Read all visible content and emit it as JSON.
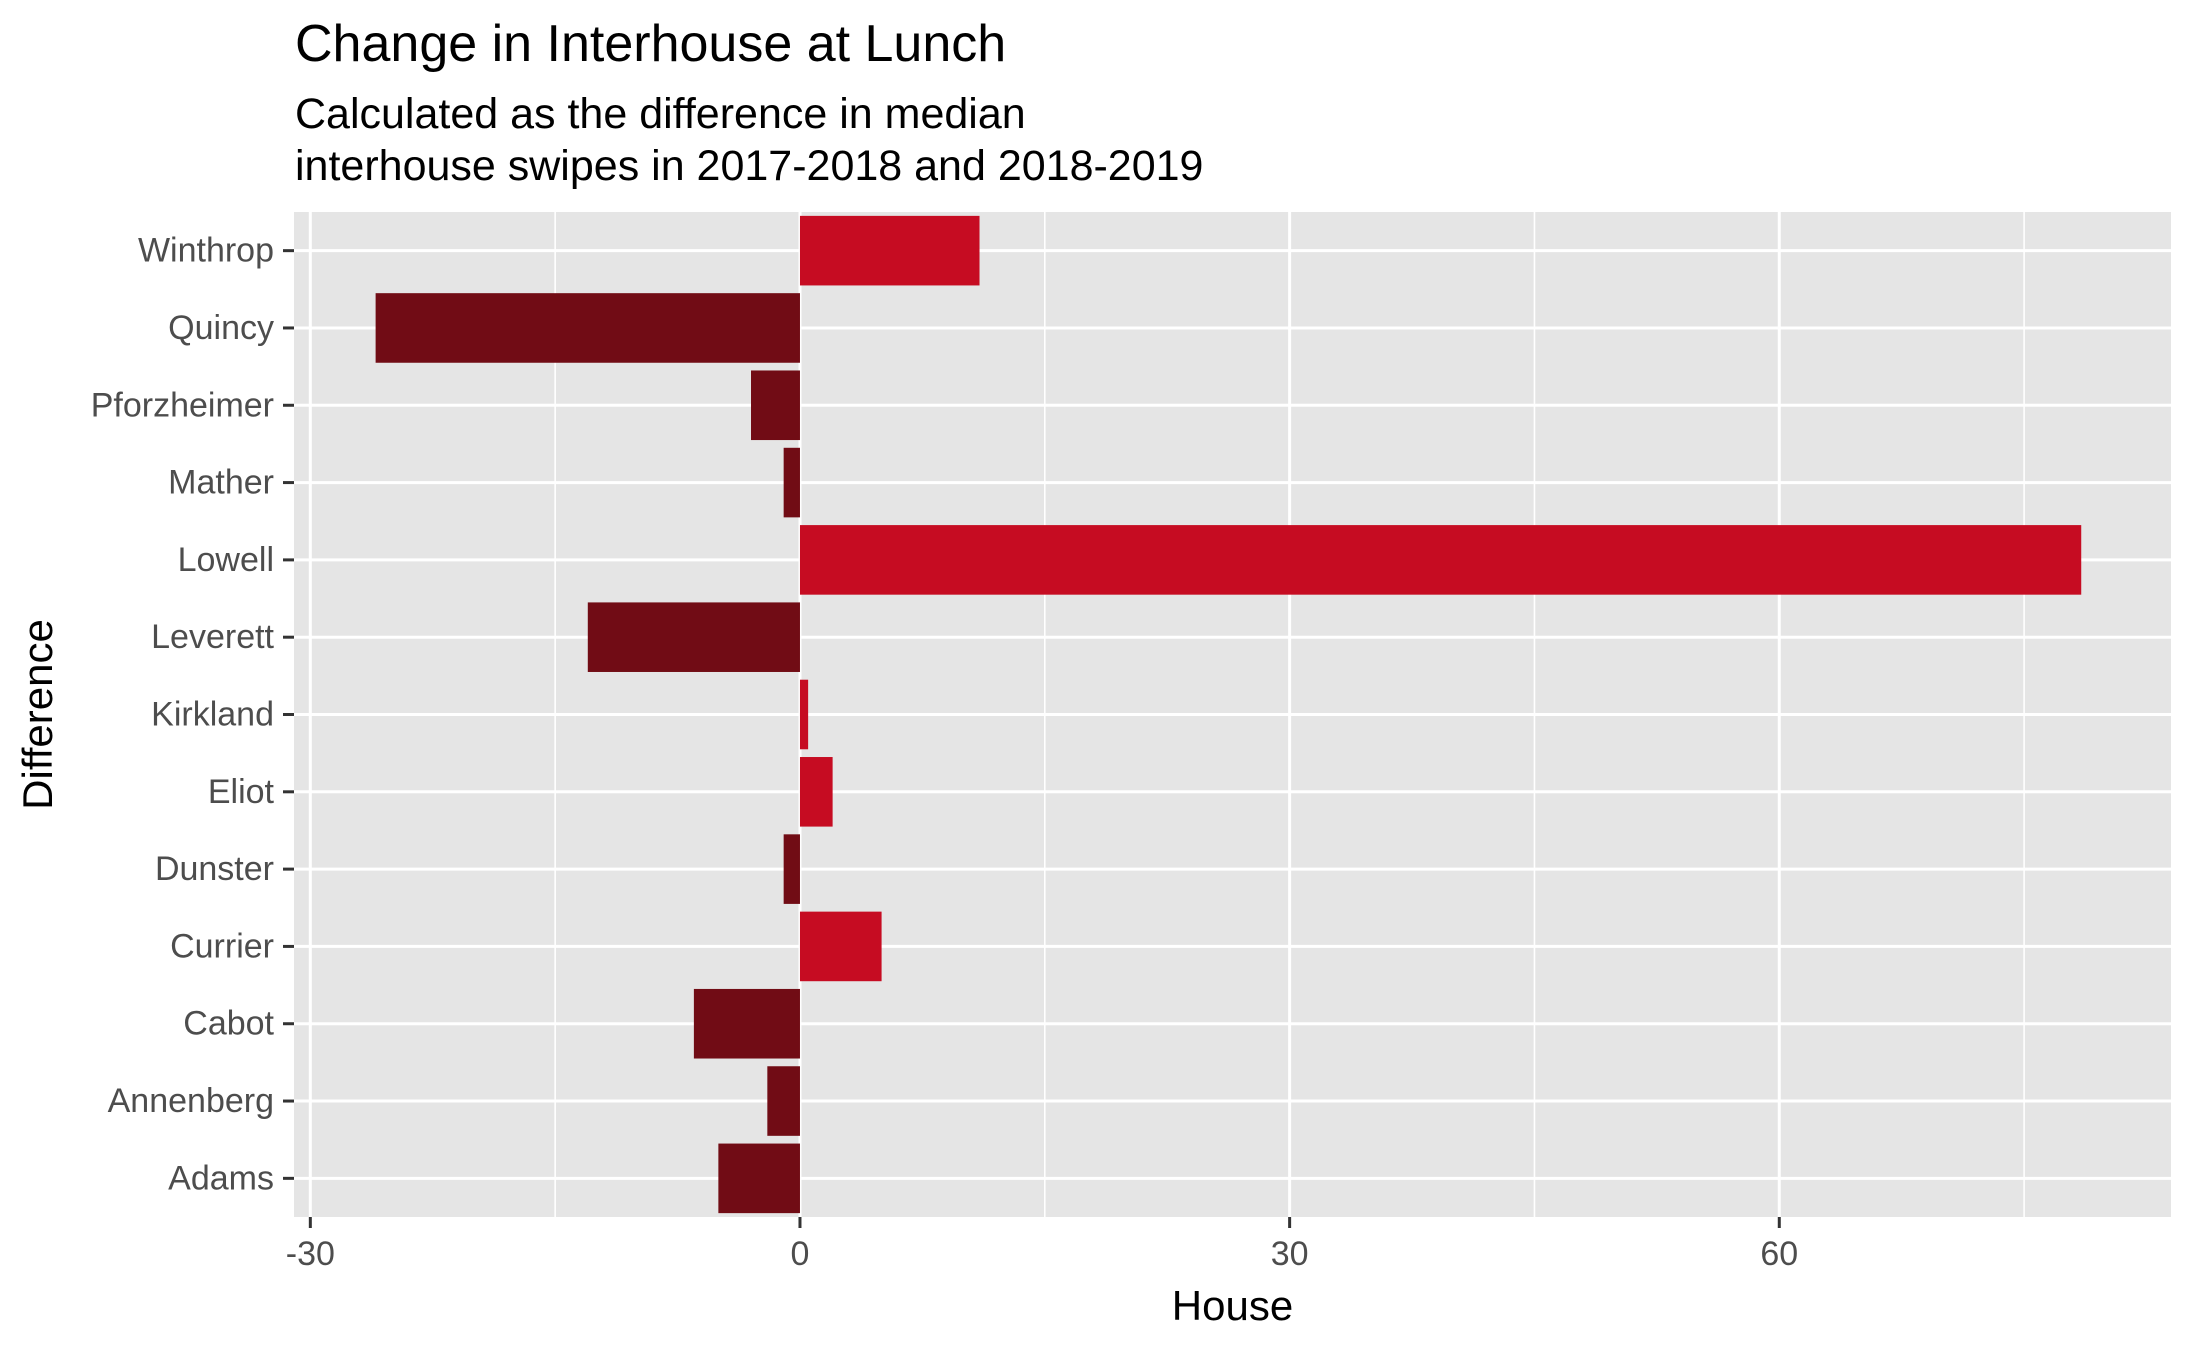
{
  "chart_data": {
    "type": "bar",
    "orientation": "horizontal",
    "title": "Change in Interhouse at Lunch",
    "subtitle_lines": [
      "Calculated as the difference in median",
      "interhouse swipes in 2017-2018 and 2018-2019"
    ],
    "xlabel": "House",
    "ylabel": "Difference",
    "xlim": [
      -31,
      84
    ],
    "x_ticks": [
      -30,
      0,
      30,
      60
    ],
    "x_tick_labels": [
      "-30",
      "0",
      "30",
      "60"
    ],
    "x_minor_ticks": [
      -15,
      15,
      45,
      75
    ],
    "grid": true,
    "legend": "none",
    "categories": [
      "Adams",
      "Annenberg",
      "Cabot",
      "Currier",
      "Dunster",
      "Eliot",
      "Kirkland",
      "Leverett",
      "Lowell",
      "Mather",
      "Pforzheimer",
      "Quincy",
      "Winthrop"
    ],
    "values": [
      -5,
      -2,
      -6.5,
      5,
      -1,
      2,
      0.5,
      -13,
      78.5,
      -1,
      -3,
      -26,
      11
    ],
    "colors": {
      "positive": "#c60c22",
      "negative": "#710c15",
      "panel_background": "#e5e5e5",
      "grid": "#ffffff"
    }
  }
}
